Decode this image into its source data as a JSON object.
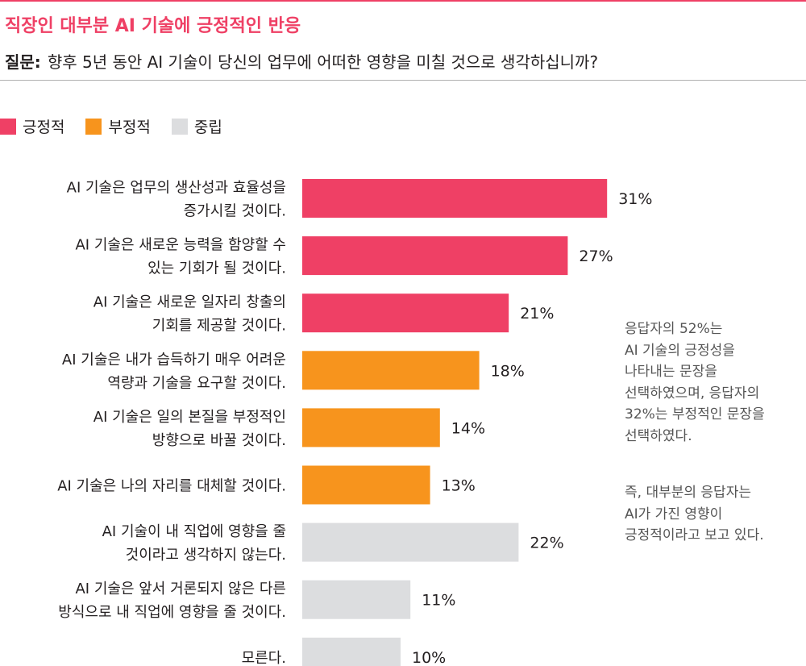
{
  "title": "직장인 대부분 AI 기술에 긍정적인 반응",
  "question": {
    "label": "질문:",
    "text": "향후 5년 동안 AI 기술이 당신의 업무에 어떠한 영향을 미칠 것으로 생각하십니까?"
  },
  "legend": [
    {
      "label": "긍정적",
      "color": "#ef4065"
    },
    {
      "label": "부정적",
      "color": "#f7941d"
    },
    {
      "label": "중립",
      "color": "#dcdddf"
    }
  ],
  "chart_data": {
    "type": "bar",
    "orientation": "horizontal",
    "unit": "%",
    "categories": [
      [
        "AI 기술은 업무의 생산성과 효율성을",
        "증가시킬 것이다."
      ],
      [
        "AI 기술은 새로운 능력을 함양할 수",
        "있는 기회가 될 것이다."
      ],
      [
        "AI 기술은 새로운 일자리 창출의",
        "기회를 제공할 것이다."
      ],
      [
        "AI 기술은 내가 습득하기 매우 어려운",
        "역량과 기술을 요구할 것이다."
      ],
      [
        "AI 기술은 일의 본질을 부정적인",
        "방향으로 바꿀 것이다."
      ],
      [
        "AI 기술은 나의 자리를 대체할 것이다."
      ],
      [
        "AI 기술이 내 직업에 영향을 줄",
        "것이라고 생각하지 않는다."
      ],
      [
        "AI 기술은 앞서 거론되지 않은 다른",
        "방식으로 내 직업에 영향을 줄 것이다."
      ],
      [
        "모른다."
      ]
    ],
    "values": [
      31,
      27,
      21,
      18,
      14,
      13,
      22,
      11,
      10
    ],
    "value_labels": [
      "31%",
      "27%",
      "21%",
      "18%",
      "14%",
      "13%",
      "22%",
      "11%",
      "10%"
    ],
    "groups": [
      "긍정적",
      "긍정적",
      "긍정적",
      "부정적",
      "부정적",
      "부정적",
      "중립",
      "중립",
      "중립"
    ],
    "xlim": [
      0,
      100
    ],
    "grid": false,
    "legend_position": "top-left"
  },
  "notes": {
    "note1": [
      "응답자의 52%는",
      "AI 기술의 긍정성을",
      "나타내는 문장을",
      "선택하였으며, 응답자의",
      "32%는 부정적인 문장을",
      "선택하였다."
    ],
    "note2": [
      "즉, 대부분의 응답자는",
      "AI가 가진 영향이",
      "긍정적이라고 보고 있다."
    ]
  }
}
